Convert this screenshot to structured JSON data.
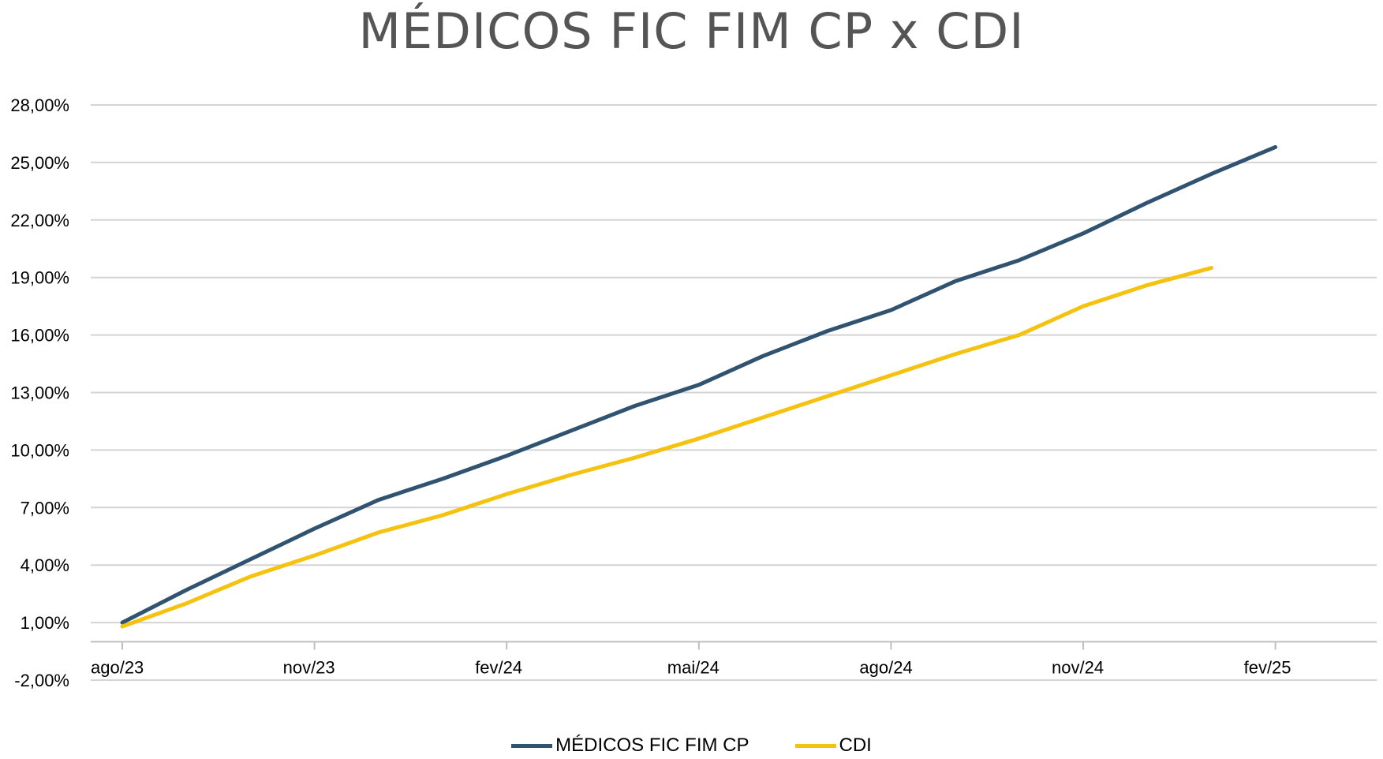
{
  "chart_data": {
    "type": "line",
    "title": "MÉDICOS FIC FIM CP x CDI",
    "xlabel": "",
    "ylabel": "",
    "y_ticks": [
      "-2,00%",
      "1,00%",
      "4,00%",
      "7,00%",
      "10,00%",
      "13,00%",
      "16,00%",
      "19,00%",
      "22,00%",
      "25,00%",
      "28,00%"
    ],
    "ylim": [
      -2,
      28
    ],
    "x_tick_labels": [
      "ago/23",
      "nov/23",
      "fev/24",
      "mai/24",
      "ago/24",
      "nov/24",
      "fev/25"
    ],
    "x": [
      "ago/23",
      "set/23",
      "out/23",
      "nov/23",
      "dez/23",
      "jan/24",
      "fev/24",
      "mar/24",
      "abr/24",
      "mai/24",
      "jun/24",
      "jul/24",
      "ago/24",
      "set/24",
      "out/24",
      "nov/24",
      "dez/24",
      "jan/25",
      "fev/25",
      "mar/25"
    ],
    "series": [
      {
        "name": "MÉDICOS FIC FIM CP",
        "color": "#2f5370",
        "values": [
          1.0,
          2.7,
          4.3,
          5.9,
          7.4,
          8.5,
          9.7,
          11.0,
          12.3,
          13.4,
          14.9,
          16.2,
          17.3,
          18.8,
          19.9,
          21.3,
          22.9,
          24.4,
          25.8,
          null
        ]
      },
      {
        "name": "CDI",
        "color": "#f5c20f",
        "values": [
          0.8,
          2.0,
          3.4,
          4.5,
          5.7,
          6.6,
          7.7,
          8.7,
          9.6,
          10.6,
          11.7,
          12.8,
          13.9,
          15.0,
          16.0,
          17.5,
          18.6,
          19.5,
          null,
          null
        ]
      }
    ],
    "grid": true,
    "legend_position": "bottom"
  }
}
